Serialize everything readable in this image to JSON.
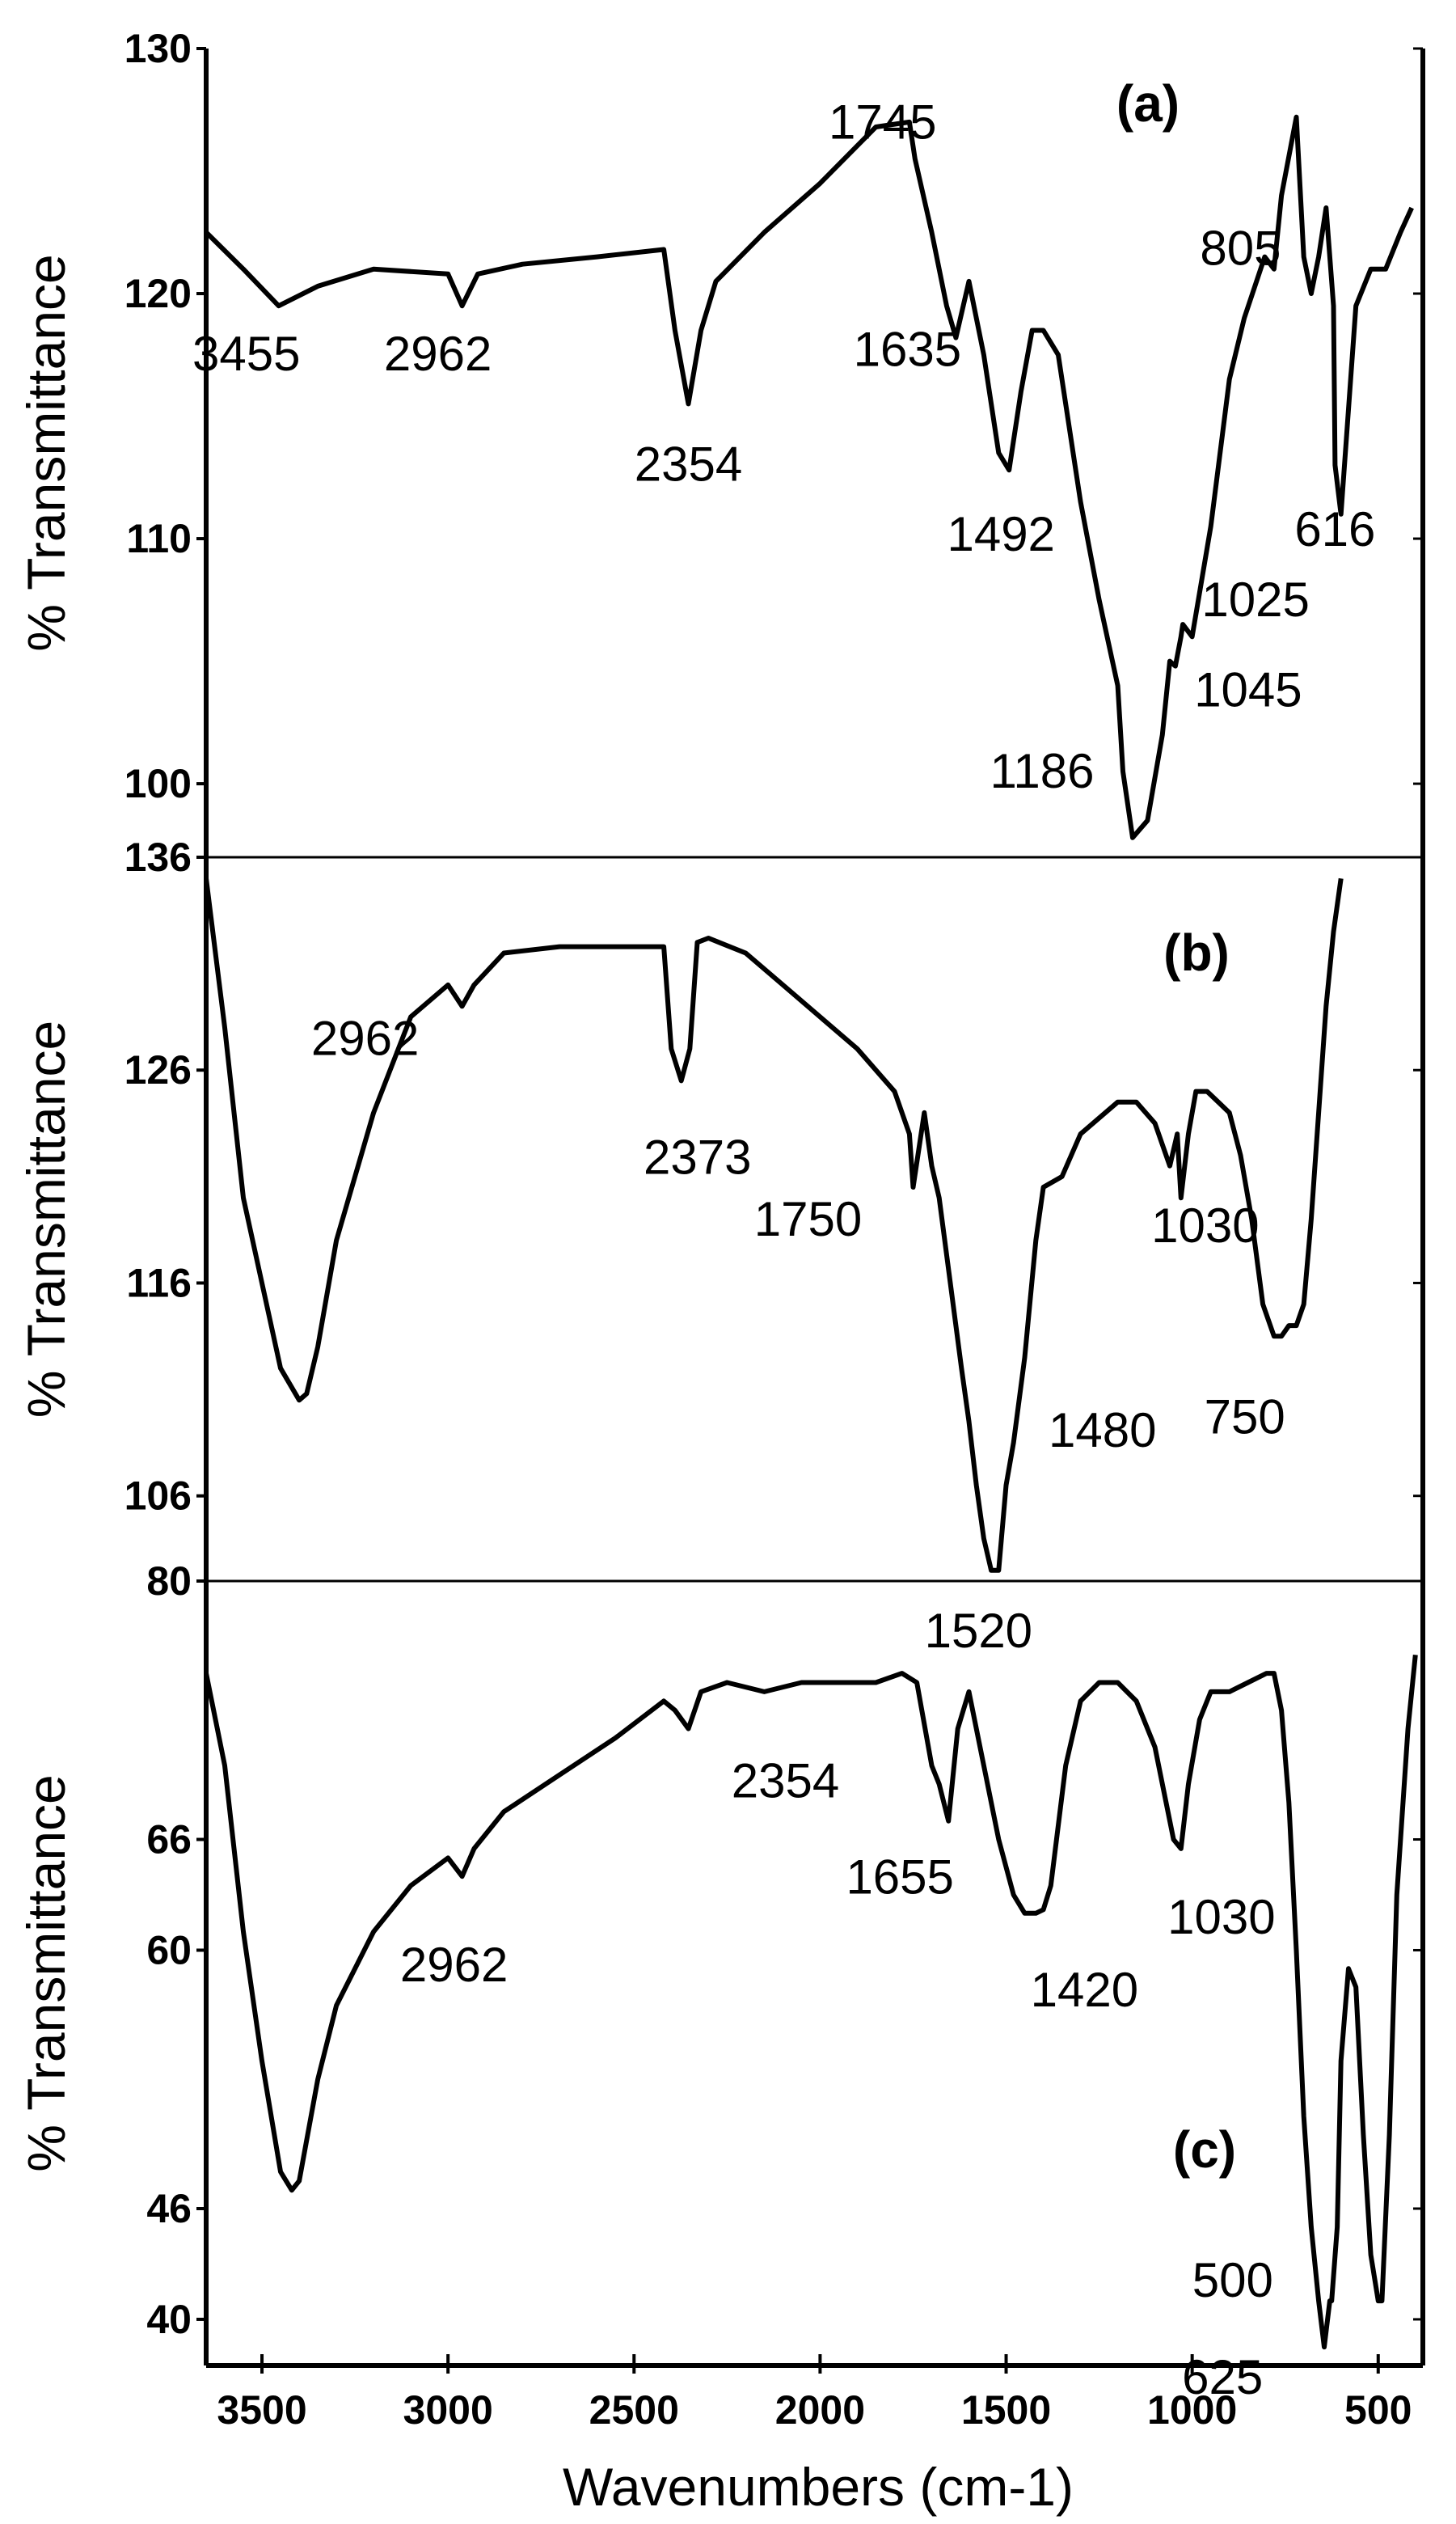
{
  "colors": {
    "line": "#000000",
    "background": "#ffffff"
  },
  "chart_data": {
    "type": "line",
    "xlabel": "Wavenumbers (cm-1)",
    "x_reversed": true,
    "xlim": [
      3650,
      380
    ],
    "x_ticks": [
      3500,
      3000,
      2500,
      2000,
      1500,
      1000,
      500
    ],
    "panels": [
      {
        "tag": "(a)",
        "ylabel": "% Transmittance",
        "ylim": [
          97,
          130
        ],
        "y_ticks": [
          100,
          110,
          120,
          130
        ],
        "y_tick_labels": [
          "100",
          "110",
          "120",
          "130"
        ],
        "series": [
          {
            "x": [
              3650,
              3550,
              3455,
              3350,
              3200,
              3000,
              2962,
              2920,
              2800,
              2600,
              2420,
              2390,
              2354,
              2320,
              2280,
              2150,
              2000,
              1850,
              1760,
              1745,
              1700,
              1660,
              1635,
              1600,
              1560,
              1520,
              1492,
              1460,
              1430,
              1400,
              1360,
              1300,
              1250,
              1200,
              1186,
              1160,
              1120,
              1080,
              1060,
              1045,
              1030,
              1025,
              1000,
              950,
              900,
              860,
              805,
              780,
              760,
              720,
              700,
              680,
              660,
              640,
              620,
              616,
              600,
              560,
              520,
              480,
              440,
              410
            ],
            "y": [
              122.5,
              121.0,
              119.5,
              120.3,
              121.0,
              120.8,
              119.5,
              120.8,
              121.2,
              121.5,
              121.8,
              118.5,
              115.5,
              118.5,
              120.5,
              122.5,
              124.5,
              126.8,
              127.0,
              125.5,
              122.5,
              119.5,
              118.2,
              120.5,
              117.5,
              113.5,
              112.8,
              116.0,
              118.5,
              118.5,
              117.5,
              111.5,
              107.5,
              104.0,
              100.5,
              97.8,
              98.5,
              102.0,
              105.0,
              104.8,
              106.0,
              106.5,
              106.0,
              110.5,
              116.5,
              119.0,
              121.5,
              121.0,
              124.0,
              127.2,
              121.5,
              120.0,
              121.5,
              123.5,
              119.5,
              113.0,
              111.0,
              119.5,
              121.0,
              121.0,
              122.5,
              123.5
            ]
          }
        ],
        "peaks": [
          {
            "label": "3455",
            "x": 3455,
            "y": 119.5
          },
          {
            "label": "2962",
            "x": 2962,
            "y": 119.5
          },
          {
            "label": "2354",
            "x": 2354,
            "y": 115.5
          },
          {
            "label": "1745",
            "x": 1745,
            "y": 125.5
          },
          {
            "label": "1635",
            "x": 1635,
            "y": 118.2
          },
          {
            "label": "1492",
            "x": 1492,
            "y": 112.8
          },
          {
            "label": "1186",
            "x": 1186,
            "y": 100.5
          },
          {
            "label": "1045",
            "x": 1045,
            "y": 104.8
          },
          {
            "label": "1025",
            "x": 1025,
            "y": 106.5
          },
          {
            "label": "805",
            "x": 805,
            "y": 121.5
          },
          {
            "label": "616",
            "x": 616,
            "y": 113.0
          }
        ]
      },
      {
        "tag": "(b)",
        "ylabel": "% Transmittance",
        "ylim": [
          102,
          136
        ],
        "y_ticks": [
          106,
          116,
          126,
          136
        ],
        "y_tick_labels": [
          "106",
          "116",
          "126",
          "136"
        ],
        "series": [
          {
            "x": [
              3650,
              3600,
              3550,
              3500,
              3450,
              3400,
              3380,
              3350,
              3300,
              3200,
              3100,
              3000,
              2962,
              2930,
              2850,
              2700,
              2500,
              2420,
              2400,
              2373,
              2350,
              2330,
              2300,
              2200,
              2100,
              2000,
              1900,
              1800,
              1760,
              1750,
              1720,
              1700,
              1680,
              1650,
              1620,
              1600,
              1580,
              1560,
              1540,
              1520,
              1500,
              1480,
              1450,
              1420,
              1400,
              1350,
              1300,
              1200,
              1150,
              1100,
              1060,
              1040,
              1030,
              1010,
              990,
              960,
              930,
              900,
              870,
              840,
              810,
              780,
              760,
              740,
              720,
              700,
              680,
              660,
              640,
              620,
              600
            ],
            "y": [
              135,
              128,
              120,
              116,
              112,
              110.5,
              110.8,
              113,
              118,
              124,
              128.5,
              130,
              129,
              130,
              131.5,
              131.8,
              131.8,
              131.8,
              127,
              125.5,
              127,
              132,
              132.2,
              131.5,
              130,
              128.5,
              127,
              125,
              123,
              120.5,
              124,
              121.5,
              120,
              116,
              112,
              109.5,
              106.5,
              104,
              102.5,
              102.5,
              106.5,
              108.5,
              112.5,
              118,
              120.5,
              121,
              123,
              124.5,
              124.5,
              123.5,
              121.5,
              123,
              120,
              123,
              125,
              125,
              124.5,
              124,
              122,
              119,
              115,
              113.5,
              113.5,
              114,
              114,
              115,
              119,
              124,
              129,
              132.5,
              135
            ]
          }
        ],
        "peaks": [
          {
            "label": "2962",
            "x": 2962,
            "y": 129
          },
          {
            "label": "2373",
            "x": 2373,
            "y": 125.5
          },
          {
            "label": "1750",
            "x": 1750,
            "y": 120.5
          },
          {
            "label": "1520",
            "x": 1520,
            "y": 102.5
          },
          {
            "label": "1480",
            "x": 1480,
            "y": 108.5
          },
          {
            "label": "1030",
            "x": 1030,
            "y": 120
          },
          {
            "label": "750",
            "x": 750,
            "y": 113.5
          }
        ]
      },
      {
        "tag": "(c)",
        "ylabel": "% Transmittance",
        "ylim": [
          37.5,
          80
        ],
        "y_ticks": [
          40,
          46,
          60,
          66,
          80
        ],
        "y_tick_labels": [
          "40",
          "46",
          "60",
          "66",
          "80"
        ],
        "series": [
          {
            "x": [
              3650,
              3600,
              3550,
              3500,
              3450,
              3420,
              3400,
              3350,
              3300,
              3200,
              3100,
              3000,
              2962,
              2930,
              2850,
              2700,
              2550,
              2420,
              2390,
              2354,
              2320,
              2250,
              2150,
              2050,
              1950,
              1850,
              1780,
              1740,
              1700,
              1680,
              1655,
              1630,
              1600,
              1560,
              1520,
              1480,
              1450,
              1420,
              1400,
              1380,
              1340,
              1300,
              1250,
              1200,
              1150,
              1100,
              1070,
              1050,
              1030,
              1010,
              980,
              950,
              900,
              850,
              800,
              780,
              760,
              740,
              720,
              700,
              680,
              660,
              645,
              630,
              625,
              610,
              600,
              580,
              560,
              540,
              520,
              500,
              490,
              470,
              450,
              420,
              400
            ],
            "y": [
              75,
              70,
              61,
              54,
              48,
              47,
              47.5,
              53,
              57,
              61,
              63.5,
              65,
              64,
              65.5,
              67.5,
              69.5,
              71.5,
              73.5,
              73,
              72,
              74,
              74.5,
              74,
              74.5,
              74.5,
              74.5,
              75,
              74.5,
              70,
              69,
              67,
              72,
              74,
              70,
              66,
              63,
              62,
              62,
              62.2,
              63.5,
              70,
              73.5,
              74.5,
              74.5,
              73.5,
              71,
              68,
              66,
              65.5,
              69,
              72.5,
              74,
              74,
              74.5,
              75,
              75,
              73,
              68,
              60,
              51,
              45,
              41,
              38.5,
              41,
              41,
              45,
              54,
              59,
              58,
              50,
              43.5,
              41,
              41,
              50,
              63,
              72,
              76
            ]
          }
        ],
        "peaks": [
          {
            "label": "2962",
            "x": 2962,
            "y": 64
          },
          {
            "label": "2354",
            "x": 2354,
            "y": 72
          },
          {
            "label": "1655",
            "x": 1655,
            "y": 67
          },
          {
            "label": "1420",
            "x": 1420,
            "y": 62
          },
          {
            "label": "1030",
            "x": 1030,
            "y": 65.5
          },
          {
            "label": "500",
            "x": 500,
            "y": 41
          },
          {
            "label": "625",
            "x": 625,
            "y": 41
          }
        ]
      }
    ]
  }
}
